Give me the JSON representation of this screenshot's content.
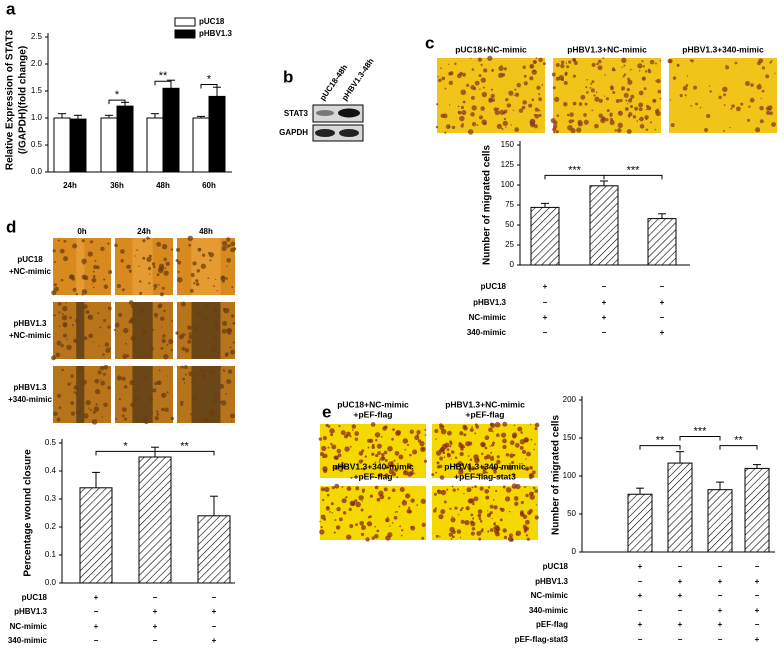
{
  "panel_labels": [
    "a",
    "b",
    "c",
    "d",
    "e"
  ],
  "blot": {
    "lanes": [
      "pUC18-48h",
      "pHBV1.3-48h"
    ],
    "rows": [
      "STAT3",
      "GAPDH"
    ]
  },
  "images_c": {
    "labels": [
      "pUC18+NC-mimic",
      "pHBV1.3+NC-mimic",
      "pHBV1.3+340-mimic"
    ]
  },
  "images_d": {
    "columns": [
      "0h",
      "24h",
      "48h"
    ],
    "rows": [
      [
        "pUC18",
        "+NC-mimic"
      ],
      [
        "pHBV1.3",
        "+NC-mimic"
      ],
      [
        "pHBV1.3",
        "+340-mimic"
      ]
    ]
  },
  "images_e": {
    "labels": [
      [
        "pUC18+NC-mimic",
        "+pEF-flag"
      ],
      [
        "pHBV1.3+NC-mimic",
        "+pEF-flag"
      ],
      [
        "pHBV1.3+340-mimic",
        "+pEF-flag"
      ],
      [
        "pHBV1.3+340-mimic",
        "+pEF-flag-stat3"
      ]
    ]
  },
  "chart_data": [
    {
      "type": "bar",
      "y_label": [
        "Relative Expression of STAT3",
        "(/GAPDH)(fold change)"
      ],
      "categories": [
        "24h",
        "36h",
        "48h",
        "60h"
      ],
      "series": [
        {
          "name": "pUC18",
          "color": "#ffffff",
          "values": [
            1.0,
            1.0,
            1.0,
            1.0
          ],
          "errors": [
            0.08,
            0.05,
            0.08,
            0.03
          ]
        },
        {
          "name": "pHBV1.3",
          "color": "#000000",
          "values": [
            0.98,
            1.22,
            1.55,
            1.4
          ],
          "errors": [
            0.07,
            0.07,
            0.15,
            0.17
          ]
        }
      ],
      "ylim": [
        0,
        2.5
      ],
      "yticks": [
        {
          "value": 0,
          "label": "0.0"
        },
        0.5,
        {
          "value": 1,
          "label": "1.0"
        },
        1.5,
        {
          "value": 2,
          "label": "2.0"
        },
        2.5
      ],
      "annotations": [
        "*",
        "**",
        "*"
      ]
    },
    {
      "type": "bar",
      "y_label": [
        "Number of migrated cells"
      ],
      "pattern": "hatch",
      "values": [
        72,
        99,
        58
      ],
      "errors": [
        5,
        6,
        6
      ],
      "ylim": [
        0,
        150
      ],
      "yticks": [
        0,
        25,
        50,
        75,
        100,
        125,
        150
      ],
      "annotations": [
        "***",
        "***"
      ],
      "conditions": [
        {
          "label": "pUC18",
          "marks": [
            "+",
            "−",
            "−"
          ]
        },
        {
          "label": "pHBV1.3",
          "marks": [
            "−",
            "+",
            "+"
          ]
        },
        {
          "label": "NC-mimic",
          "marks": [
            "+",
            "+",
            "−"
          ]
        },
        {
          "label": "340-mimic",
          "marks": [
            "−",
            "−",
            "+"
          ]
        }
      ]
    },
    {
      "type": "bar",
      "y_label": [
        "Percentage wound closure"
      ],
      "pattern": "hatch",
      "values": [
        0.34,
        0.45,
        0.24
      ],
      "errors": [
        0.055,
        0.035,
        0.07
      ],
      "ylim": [
        0,
        0.5
      ],
      "yticks": [
        {
          "value": 0,
          "label": "0.0"
        },
        0.1,
        0.2,
        0.3,
        0.4,
        0.5
      ],
      "annotations": [
        "*",
        "**"
      ],
      "conditions": [
        {
          "label": "pUC18",
          "marks": [
            "+",
            "−",
            "−"
          ]
        },
        {
          "label": "pHBV1.3",
          "marks": [
            "−",
            "+",
            "+"
          ]
        },
        {
          "label": "NC-mimic",
          "marks": [
            "+",
            "+",
            "−"
          ]
        },
        {
          "label": "340-mimic",
          "marks": [
            "−",
            "−",
            "+"
          ]
        }
      ]
    },
    {
      "type": "bar",
      "y_label": [
        "Number of migrated cells"
      ],
      "pattern": "hatch",
      "values": [
        76,
        117,
        82,
        110
      ],
      "errors": [
        8,
        15,
        10,
        5
      ],
      "ylim": [
        0,
        200
      ],
      "yticks": [
        0,
        50,
        100,
        150,
        200
      ],
      "annotations": [
        "**",
        "***",
        "**"
      ],
      "conditions": [
        {
          "label": "pUC18",
          "marks": [
            "+",
            "−",
            "−",
            "−"
          ]
        },
        {
          "label": "pHBV1.3",
          "marks": [
            "−",
            "+",
            "+",
            "+"
          ]
        },
        {
          "label": "NC-mimic",
          "marks": [
            "+",
            "+",
            "−",
            "−"
          ]
        },
        {
          "label": "340-mimic",
          "marks": [
            "−",
            "−",
            "+",
            "+"
          ]
        },
        {
          "label": "pEF-flag",
          "marks": [
            "+",
            "+",
            "+",
            "−"
          ]
        },
        {
          "label": "pEF-flag-stat3",
          "marks": [
            "−",
            "−",
            "−",
            "+"
          ]
        }
      ]
    }
  ]
}
